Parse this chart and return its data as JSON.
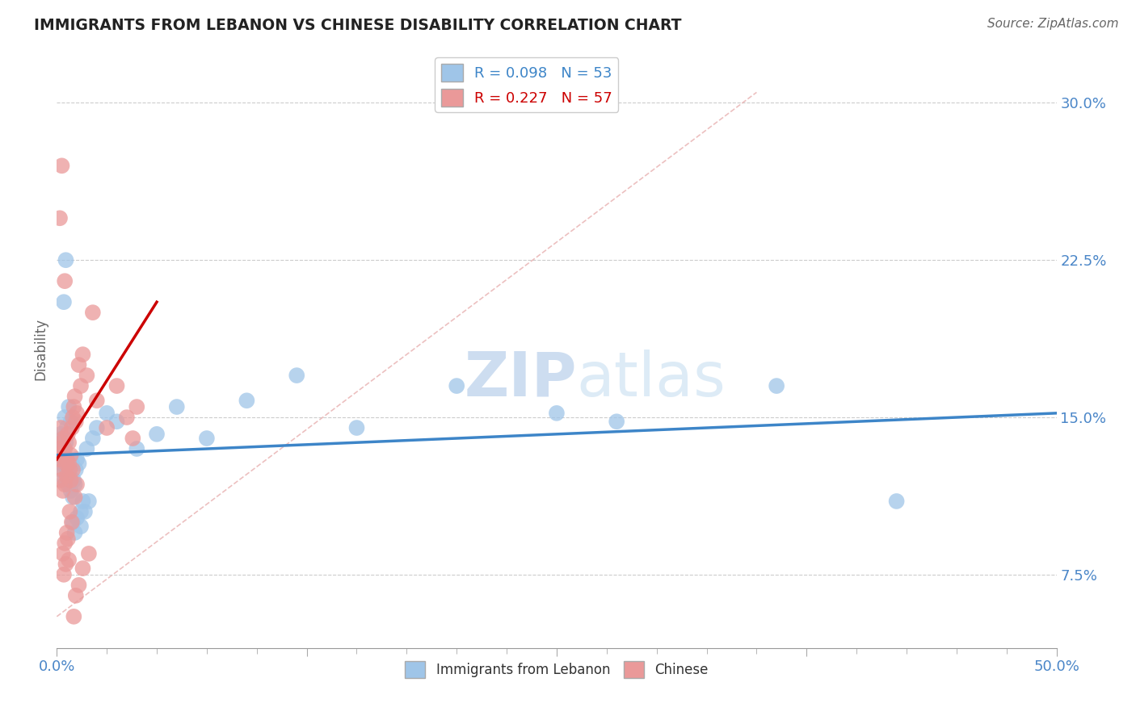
{
  "title": "IMMIGRANTS FROM LEBANON VS CHINESE DISABILITY CORRELATION CHART",
  "source": "Source: ZipAtlas.com",
  "ylabel_label": "Disability",
  "x_tick_values": [
    0.0,
    12.5,
    25.0,
    37.5,
    50.0
  ],
  "y_tick_labels": [
    "7.5%",
    "15.0%",
    "22.5%",
    "30.0%"
  ],
  "y_tick_values": [
    7.5,
    15.0,
    22.5,
    30.0
  ],
  "xlim": [
    0.0,
    50.0
  ],
  "ylim": [
    4.0,
    32.5
  ],
  "legend1_label": "R = 0.098   N = 53",
  "legend2_label": "R = 0.227   N = 57",
  "legend_label1": "Immigrants from Lebanon",
  "legend_label2": "Chinese",
  "blue_color": "#9fc5e8",
  "pink_color": "#ea9999",
  "blue_line_color": "#3d85c8",
  "pink_line_color": "#cc0000",
  "diag_line_color": "#e8b0b0",
  "axis_label_color": "#4a86c8",
  "title_color": "#222222",
  "grid_color": "#cccccc",
  "watermark_color": "#dce8f5",
  "blue_scatter_x": [
    0.1,
    0.15,
    0.2,
    0.25,
    0.3,
    0.35,
    0.4,
    0.45,
    0.5,
    0.55,
    0.6,
    0.65,
    0.7,
    0.75,
    0.8,
    0.85,
    0.9,
    0.95,
    1.0,
    1.1,
    1.2,
    1.3,
    1.5,
    1.8,
    0.2,
    0.3,
    0.4,
    0.5,
    0.6,
    0.7,
    0.8,
    0.9,
    1.0,
    1.2,
    1.4,
    1.6,
    2.0,
    2.5,
    3.0,
    4.0,
    5.0,
    6.0,
    7.5,
    9.5,
    12.0,
    15.0,
    20.0,
    25.0,
    28.0,
    36.0,
    42.0,
    0.35,
    0.45
  ],
  "blue_scatter_y": [
    13.5,
    13.0,
    12.5,
    12.8,
    14.0,
    13.2,
    12.0,
    13.8,
    12.5,
    11.8,
    13.0,
    12.2,
    11.5,
    12.8,
    11.2,
    12.0,
    11.8,
    12.5,
    13.0,
    12.8,
    10.5,
    11.0,
    13.5,
    14.0,
    14.2,
    13.8,
    15.0,
    14.5,
    15.5,
    14.8,
    10.0,
    9.5,
    10.2,
    9.8,
    10.5,
    11.0,
    14.5,
    15.2,
    14.8,
    13.5,
    14.2,
    15.5,
    14.0,
    15.8,
    17.0,
    14.5,
    16.5,
    15.2,
    14.8,
    16.5,
    11.0,
    20.5,
    22.5
  ],
  "pink_scatter_x": [
    0.05,
    0.1,
    0.15,
    0.2,
    0.25,
    0.3,
    0.35,
    0.4,
    0.45,
    0.5,
    0.55,
    0.6,
    0.65,
    0.7,
    0.75,
    0.8,
    0.85,
    0.9,
    0.95,
    1.0,
    1.1,
    1.2,
    1.3,
    1.5,
    1.8,
    2.0,
    2.5,
    3.0,
    3.5,
    4.0,
    0.2,
    0.3,
    0.4,
    0.5,
    0.6,
    0.7,
    0.8,
    0.9,
    1.0,
    0.3,
    0.4,
    0.5,
    0.6,
    0.35,
    0.45,
    0.55,
    0.65,
    0.75,
    0.85,
    0.95,
    1.1,
    1.3,
    1.6,
    0.25,
    0.15,
    0.4,
    3.8
  ],
  "pink_scatter_y": [
    13.5,
    13.0,
    13.2,
    14.5,
    13.8,
    12.5,
    14.0,
    13.5,
    12.8,
    13.0,
    14.2,
    13.8,
    12.5,
    13.2,
    14.5,
    15.0,
    15.5,
    16.0,
    14.8,
    15.2,
    17.5,
    16.5,
    18.0,
    17.0,
    20.0,
    15.8,
    14.5,
    16.5,
    15.0,
    15.5,
    12.0,
    11.5,
    11.8,
    12.2,
    12.8,
    12.0,
    12.5,
    11.2,
    11.8,
    8.5,
    9.0,
    9.5,
    8.2,
    7.5,
    8.0,
    9.2,
    10.5,
    10.0,
    5.5,
    6.5,
    7.0,
    7.8,
    8.5,
    27.0,
    24.5,
    21.5,
    14.0
  ],
  "blue_line_x0": 0.0,
  "blue_line_x1": 50.0,
  "blue_line_y0": 13.2,
  "blue_line_y1": 15.2,
  "pink_line_x0": 0.0,
  "pink_line_x1": 5.0,
  "pink_line_y0": 13.0,
  "pink_line_y1": 20.5,
  "diag_x0": 0.0,
  "diag_x1": 35.0,
  "diag_y0": 5.5,
  "diag_y1": 30.5
}
